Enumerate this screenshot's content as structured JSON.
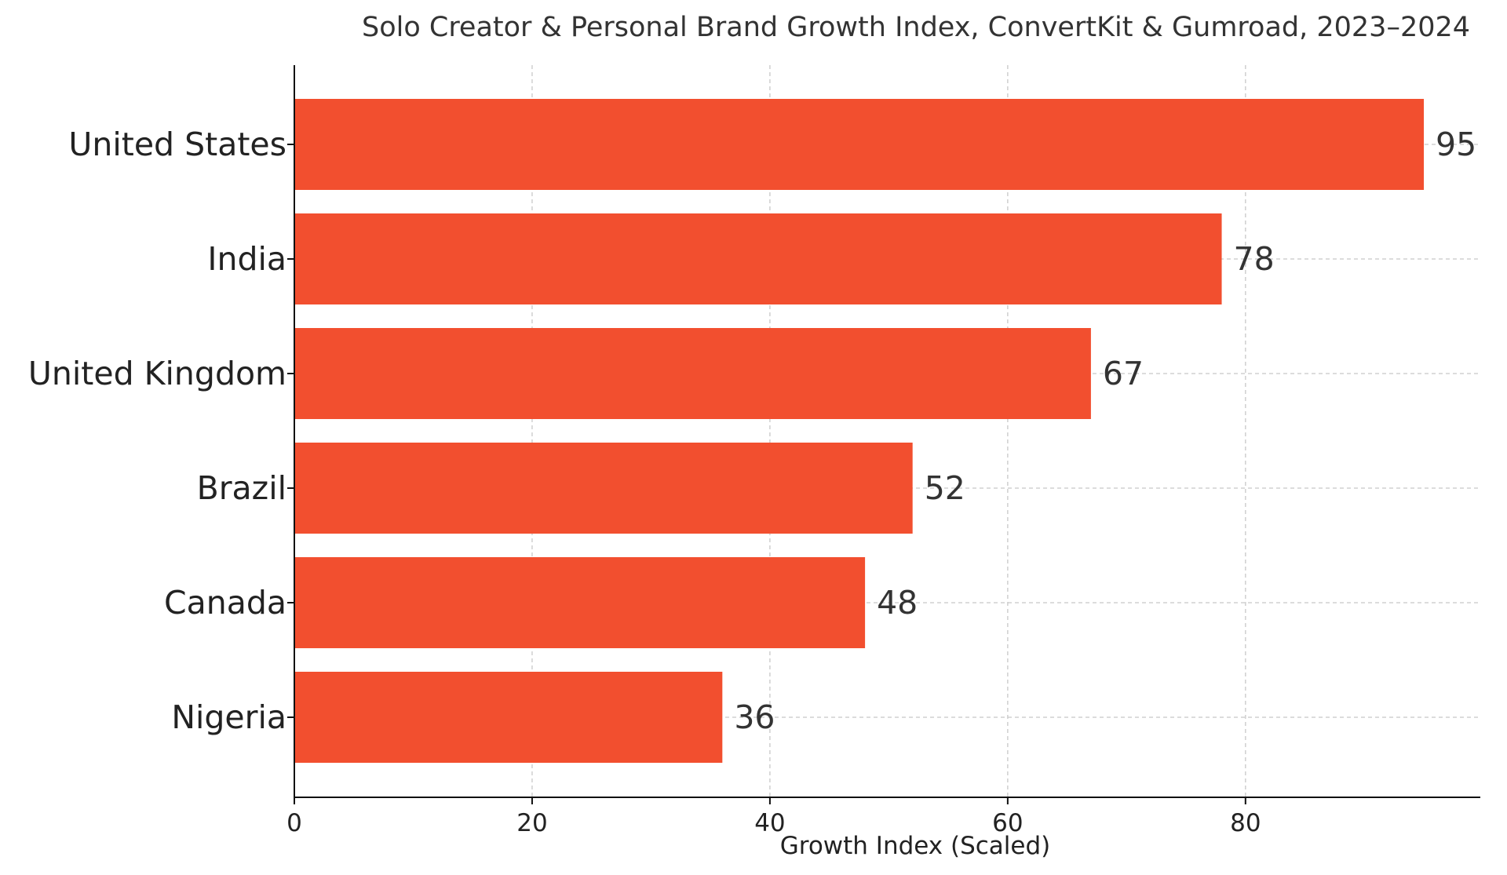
{
  "chart_data": {
    "type": "bar",
    "orientation": "horizontal",
    "title": "Solo Creator & Personal Brand Growth Index, ConvertKit & Gumroad, 2023–2024",
    "xlabel": "Growth Index (Scaled)",
    "ylabel": "",
    "categories": [
      "United States",
      "India",
      "United Kingdom",
      "Brazil",
      "Canada",
      "Nigeria"
    ],
    "values": [
      95,
      78,
      67,
      52,
      48,
      36
    ],
    "value_labels": [
      "95",
      "78",
      "67",
      "52",
      "48",
      "36"
    ],
    "xlim": [
      0,
      99.75
    ],
    "xticks": [
      0,
      20,
      40,
      60,
      80
    ],
    "xtick_labels": [
      "0",
      "20",
      "40",
      "60",
      "80"
    ],
    "grid": true,
    "bar_color": "#f24f2f"
  }
}
